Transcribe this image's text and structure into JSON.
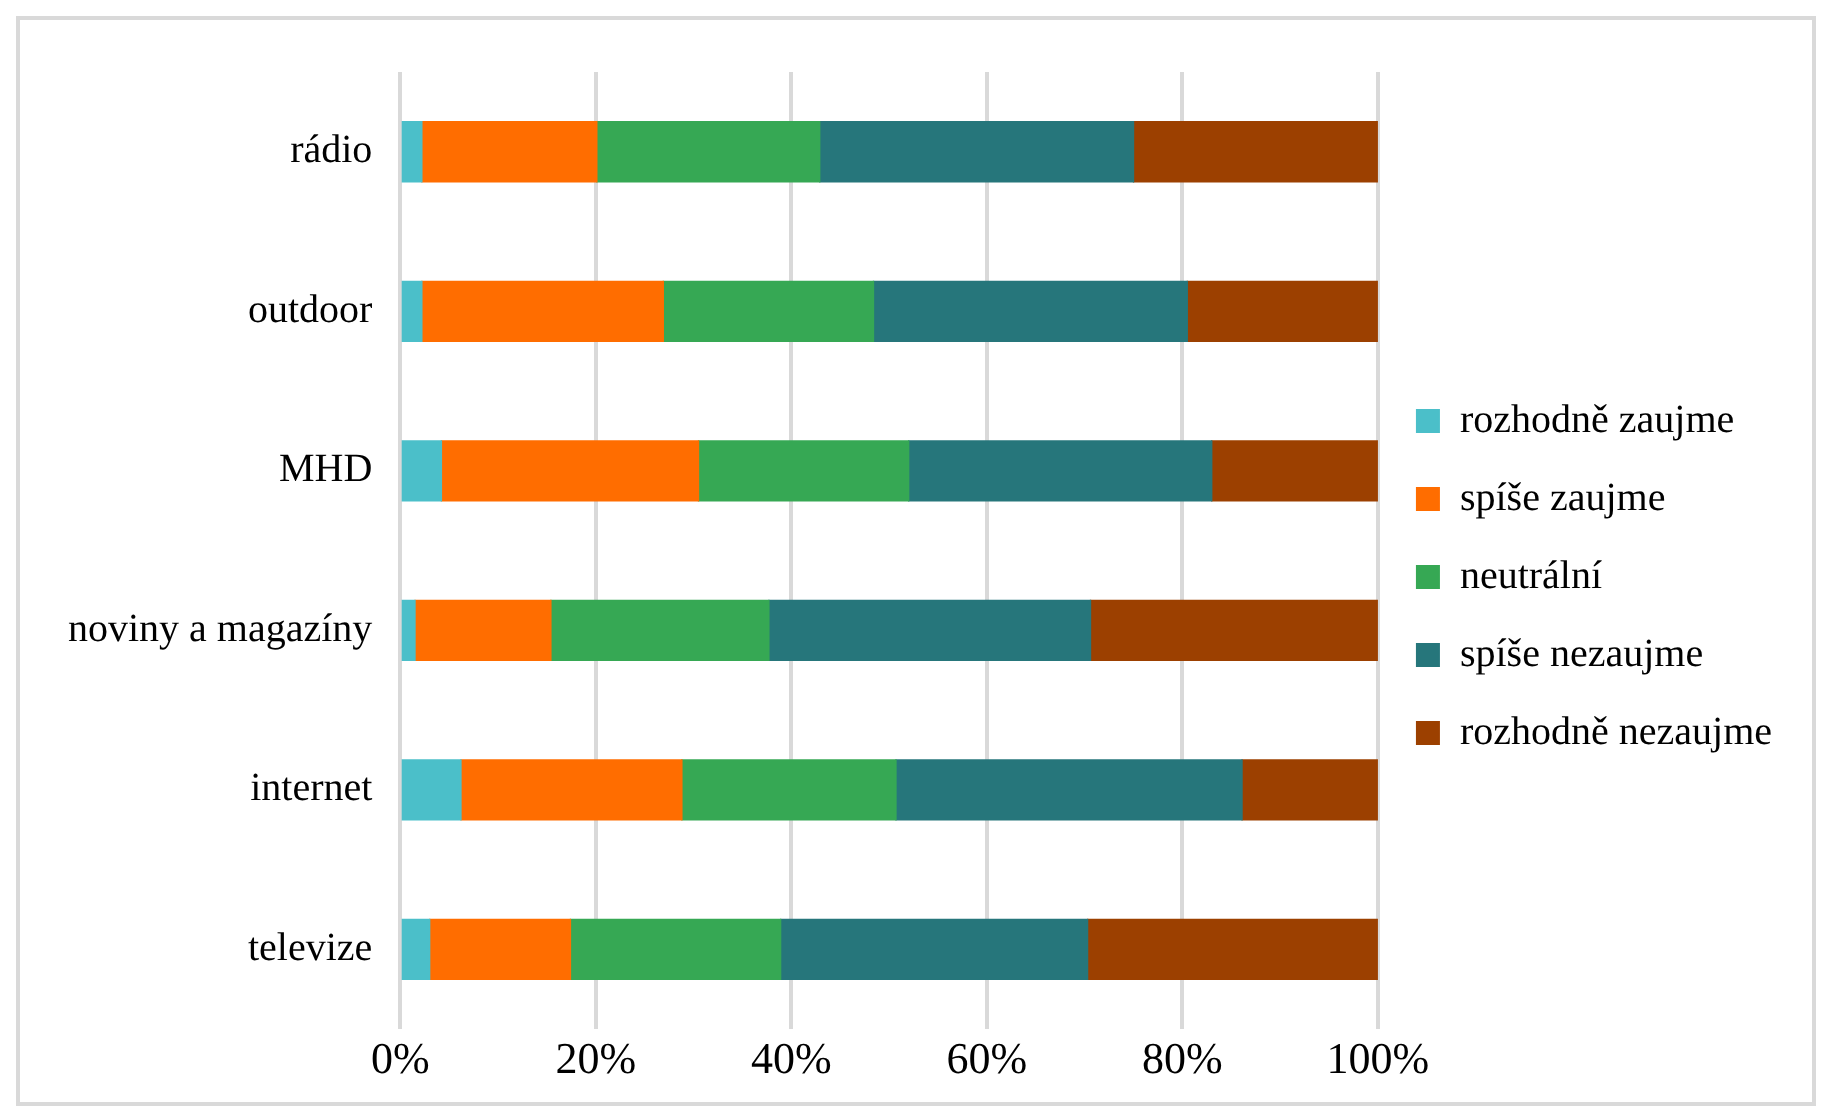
{
  "chart_data": {
    "type": "bar",
    "orientation": "horizontal",
    "stacked": true,
    "categories": [
      "rádio",
      "outdoor",
      "MHD",
      "noviny a magazíny",
      "internet",
      "televize"
    ],
    "series": [
      {
        "name": "rozhodně zaujme",
        "color": "#4bbfc9",
        "values": [
          2.2,
          2.2,
          4.2,
          1.5,
          6.2,
          3.0
        ]
      },
      {
        "name": "spíše zaujme",
        "color": "#ff6d00",
        "values": [
          17.9,
          24.7,
          26.3,
          13.9,
          22.6,
          14.4
        ]
      },
      {
        "name": "neutrální",
        "color": "#36a854",
        "values": [
          22.8,
          21.5,
          21.5,
          22.3,
          21.9,
          21.5
        ]
      },
      {
        "name": "spíše nezaujme",
        "color": "#26767b",
        "values": [
          32.1,
          32.1,
          31.0,
          32.9,
          35.4,
          31.4
        ]
      },
      {
        "name": "rozhodně nezaujme",
        "color": "#9c4000",
        "values": [
          25.0,
          19.5,
          17.0,
          29.4,
          13.9,
          29.7
        ]
      }
    ],
    "xlim": [
      0,
      100
    ],
    "xticks": [
      {
        "value": 0,
        "label": "0%"
      },
      {
        "value": 20,
        "label": "20%"
      },
      {
        "value": 40,
        "label": "40%"
      },
      {
        "value": 60,
        "label": "60%"
      },
      {
        "value": 80,
        "label": "80%"
      },
      {
        "value": 100,
        "label": "100%"
      }
    ],
    "grid": "x",
    "legend": "right"
  }
}
